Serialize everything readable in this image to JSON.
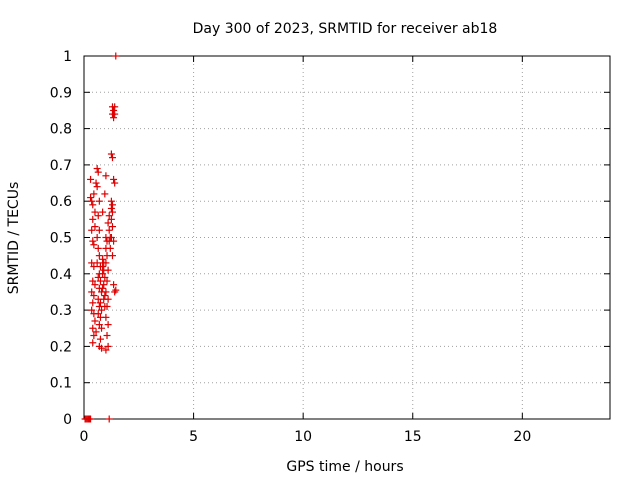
{
  "chart_data": {
    "type": "scatter",
    "title": "Day 300 of 2023, SRMTID for receiver ab18",
    "xlabel": "GPS time / hours",
    "ylabel": "SRMTID / TECUs",
    "xlim": [
      0,
      24
    ],
    "ylim": [
      0,
      1
    ],
    "xticks": [
      0,
      5,
      10,
      15,
      20
    ],
    "yticks": [
      0,
      0.1,
      0.2,
      0.3,
      0.4,
      0.5,
      0.6,
      0.7,
      0.8,
      0.9,
      1
    ],
    "grid": true,
    "marker": "+",
    "color": "#dd0000",
    "series": [
      {
        "name": "SRMTID",
        "points": [
          [
            0.05,
            0.0
          ],
          [
            0.1,
            0.0
          ],
          [
            0.15,
            0.0
          ],
          [
            0.2,
            0.0
          ],
          [
            0.25,
            0.0
          ],
          [
            0.3,
            0.0
          ],
          [
            1.15,
            0.0
          ],
          [
            0.3,
            0.61
          ],
          [
            0.35,
            0.6
          ],
          [
            0.4,
            0.59
          ],
          [
            0.3,
            0.66
          ],
          [
            0.55,
            0.65
          ],
          [
            0.45,
            0.62
          ],
          [
            0.5,
            0.57
          ],
          [
            0.4,
            0.55
          ],
          [
            0.35,
            0.52
          ],
          [
            0.4,
            0.49
          ],
          [
            0.45,
            0.48
          ],
          [
            0.5,
            0.53
          ],
          [
            0.35,
            0.43
          ],
          [
            0.45,
            0.42
          ],
          [
            0.4,
            0.38
          ],
          [
            0.5,
            0.37
          ],
          [
            0.35,
            0.35
          ],
          [
            0.45,
            0.34
          ],
          [
            0.4,
            0.32
          ],
          [
            0.35,
            0.3
          ],
          [
            0.45,
            0.29
          ],
          [
            0.5,
            0.27
          ],
          [
            0.4,
            0.25
          ],
          [
            0.45,
            0.23
          ],
          [
            0.4,
            0.21
          ],
          [
            0.55,
            0.24
          ],
          [
            0.6,
            0.69
          ],
          [
            0.65,
            0.68
          ],
          [
            0.6,
            0.64
          ],
          [
            0.7,
            0.6
          ],
          [
            0.65,
            0.56
          ],
          [
            0.7,
            0.52
          ],
          [
            0.6,
            0.5
          ],
          [
            0.65,
            0.47
          ],
          [
            0.7,
            0.45
          ],
          [
            0.6,
            0.43
          ],
          [
            0.75,
            0.42
          ],
          [
            0.7,
            0.4
          ],
          [
            0.65,
            0.39
          ],
          [
            0.75,
            0.38
          ],
          [
            0.7,
            0.36
          ],
          [
            0.8,
            0.35
          ],
          [
            0.65,
            0.33
          ],
          [
            0.75,
            0.32
          ],
          [
            0.7,
            0.31
          ],
          [
            0.8,
            0.3
          ],
          [
            0.65,
            0.29
          ],
          [
            0.75,
            0.28
          ],
          [
            0.7,
            0.26
          ],
          [
            0.8,
            0.25
          ],
          [
            0.75,
            0.22
          ],
          [
            0.7,
            0.2
          ],
          [
            0.8,
            0.195
          ],
          [
            0.85,
            0.44
          ],
          [
            0.9,
            0.43
          ],
          [
            0.85,
            0.42
          ],
          [
            0.9,
            0.41
          ],
          [
            0.85,
            0.4
          ],
          [
            0.95,
            0.39
          ],
          [
            0.9,
            0.37
          ],
          [
            0.85,
            0.36
          ],
          [
            0.95,
            0.34
          ],
          [
            0.9,
            0.33
          ],
          [
            0.95,
            0.31
          ],
          [
            0.85,
            0.57
          ],
          [
            0.95,
            0.62
          ],
          [
            1.0,
            0.67
          ],
          [
            1.0,
            0.5
          ],
          [
            1.05,
            0.49
          ],
          [
            1.0,
            0.47
          ],
          [
            1.05,
            0.45
          ],
          [
            1.0,
            0.43
          ],
          [
            1.1,
            0.41
          ],
          [
            1.05,
            0.38
          ],
          [
            1.0,
            0.35
          ],
          [
            1.1,
            0.33
          ],
          [
            1.05,
            0.31
          ],
          [
            1.0,
            0.28
          ],
          [
            1.1,
            0.26
          ],
          [
            1.05,
            0.23
          ],
          [
            1.1,
            0.2
          ],
          [
            1.0,
            0.19
          ],
          [
            1.15,
            0.56
          ],
          [
            1.1,
            0.54
          ],
          [
            1.15,
            0.52
          ],
          [
            1.2,
            0.5
          ],
          [
            1.15,
            0.49
          ],
          [
            1.2,
            0.47
          ],
          [
            1.25,
            0.6
          ],
          [
            1.3,
            0.59
          ],
          [
            1.25,
            0.58
          ],
          [
            1.3,
            0.57
          ],
          [
            1.25,
            0.55
          ],
          [
            1.3,
            0.53
          ],
          [
            1.25,
            0.5
          ],
          [
            1.35,
            0.49
          ],
          [
            1.3,
            0.45
          ],
          [
            1.25,
            0.73
          ],
          [
            1.3,
            0.72
          ],
          [
            1.35,
            0.66
          ],
          [
            1.4,
            0.65
          ],
          [
            1.3,
            0.86
          ],
          [
            1.35,
            0.85
          ],
          [
            1.3,
            0.84
          ],
          [
            1.35,
            0.83
          ],
          [
            1.4,
            0.86
          ],
          [
            1.4,
            0.84
          ],
          [
            1.35,
            0.37
          ],
          [
            1.4,
            0.35
          ],
          [
            1.45,
            0.355
          ],
          [
            1.45,
            1.0
          ]
        ]
      }
    ]
  }
}
